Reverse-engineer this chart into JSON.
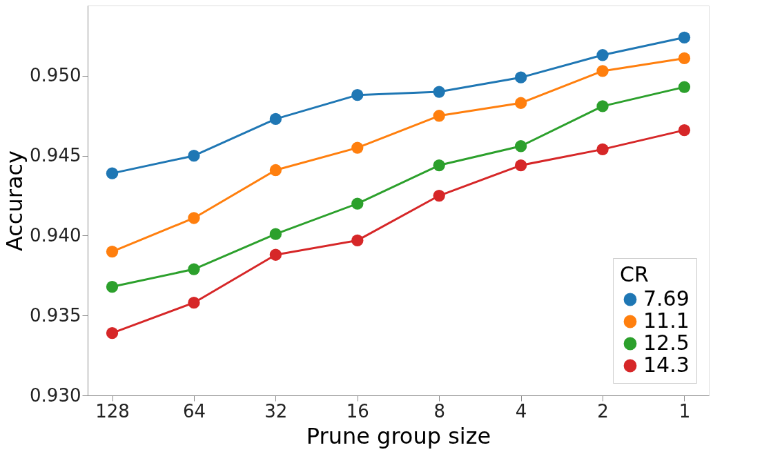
{
  "chart_data": {
    "type": "line",
    "xlabel": "Prune group size",
    "ylabel": "Accuracy",
    "legend_title": "CR",
    "legend": "bottom right",
    "marker": "circle",
    "line_style": "solid",
    "grid": false,
    "categories": [
      "128",
      "64",
      "32",
      "16",
      "8",
      "4",
      "2",
      "1"
    ],
    "ylim": [
      0.93,
      0.9544
    ],
    "yticks": [
      {
        "value": 0.93,
        "label": "0.930"
      },
      {
        "value": 0.935,
        "label": "0.935"
      },
      {
        "value": 0.94,
        "label": "0.940"
      },
      {
        "value": 0.945,
        "label": "0.945"
      },
      {
        "value": 0.95,
        "label": "0.950"
      }
    ],
    "series": [
      {
        "name": "7.69",
        "color": "#1f77b4",
        "values": [
          0.9439,
          0.945,
          0.9473,
          0.9488,
          0.949,
          0.9499,
          0.9513,
          0.9524
        ]
      },
      {
        "name": "11.1",
        "color": "#ff7f0e",
        "values": [
          0.939,
          0.9411,
          0.9441,
          0.9455,
          0.9475,
          0.9483,
          0.9503,
          0.9511
        ]
      },
      {
        "name": "12.5",
        "color": "#2ca02c",
        "values": [
          0.9368,
          0.9379,
          0.9401,
          0.942,
          0.9444,
          0.9456,
          0.9481,
          0.9493
        ]
      },
      {
        "name": "14.3",
        "color": "#d62728",
        "values": [
          0.9339,
          0.9358,
          0.9388,
          0.9397,
          0.9425,
          0.9444,
          0.9454,
          0.9466
        ]
      }
    ]
  }
}
